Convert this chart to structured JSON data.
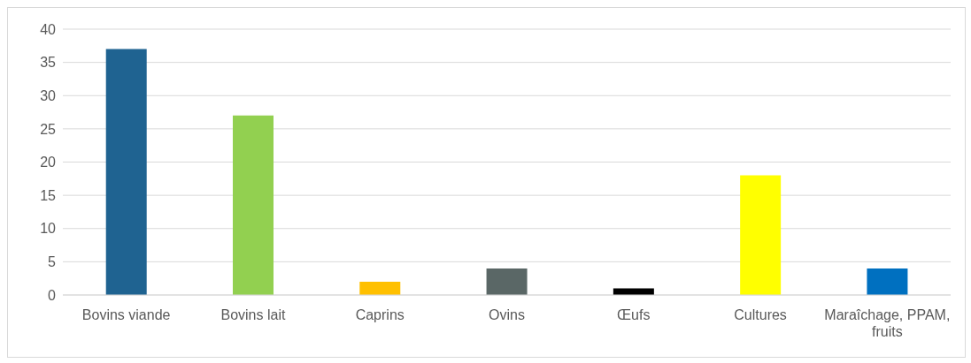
{
  "chart_data": {
    "type": "bar",
    "categories": [
      "Bovins viande",
      "Bovins lait",
      "Caprins",
      "Ovins",
      "Œufs",
      "Cultures",
      "Maraîchage, PPAM, fruits"
    ],
    "values": [
      37,
      27,
      2,
      4,
      1,
      18,
      4
    ],
    "colors": [
      "#1f6391",
      "#92d050",
      "#ffc000",
      "#5a6766",
      "#000000",
      "#ffff00",
      "#0070c0"
    ],
    "ylim": [
      0,
      40
    ],
    "yticks": [
      0,
      5,
      10,
      15,
      20,
      25,
      30,
      35,
      40
    ],
    "grid": "y"
  }
}
